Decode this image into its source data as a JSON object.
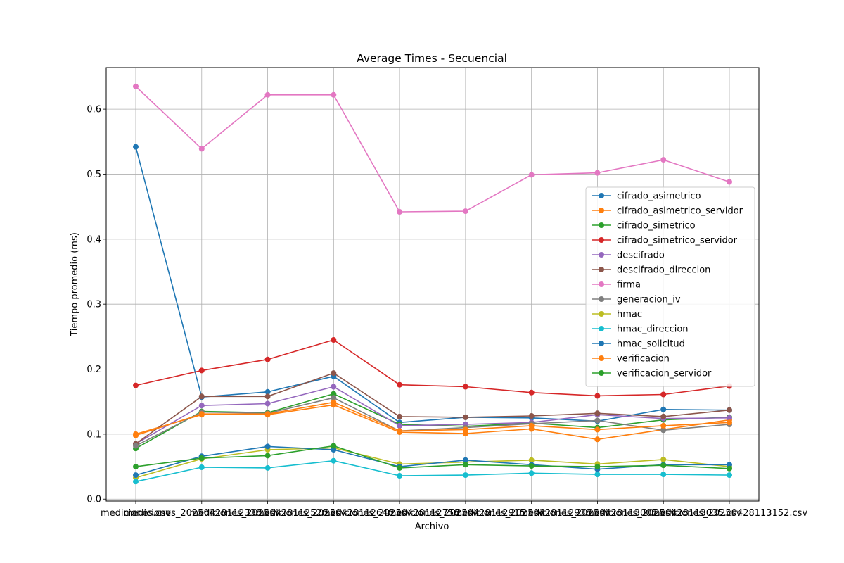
{
  "chart_data": {
    "type": "line",
    "title": "Average Times - Secuencial",
    "xlabel": "Archivo",
    "ylabel": "Tiempo promedio (ms)",
    "categories": [
      "mediciones.csv",
      "mediciones_20250428112338.csv",
      "mediciones_20250428112520.csv",
      "mediciones_20250428112640.csv",
      "mediciones_20250428112758.csv",
      "mediciones_20250428112915.csv",
      "mediciones_20250428112938.csv",
      "mediciones_20250428113007.csv",
      "mediciones_20250428113035.csv",
      "mediciones_20250428113152.csv"
    ],
    "ylim": [
      -0.003,
      0.664
    ],
    "yticks": [
      0.0,
      0.1,
      0.2,
      0.3,
      0.4,
      0.5,
      0.6
    ],
    "ytick_labels": [
      "0.0",
      "0.1",
      "0.2",
      "0.3",
      "0.4",
      "0.5",
      "0.6"
    ],
    "grid": true,
    "legend_position": "center-right",
    "series": [
      {
        "name": "cifrado_asimetrico",
        "color": "#1f77b4",
        "values": [
          0.542,
          0.157,
          0.165,
          0.189,
          0.118,
          0.126,
          0.125,
          0.12,
          0.138,
          0.137
        ]
      },
      {
        "name": "cifrado_asimetrico_servidor",
        "color": "#ff7f0e",
        "values": [
          0.1,
          0.13,
          0.13,
          0.145,
          0.103,
          0.101,
          0.108,
          0.092,
          0.107,
          0.122
        ]
      },
      {
        "name": "cifrado_simetrico",
        "color": "#2ca02c",
        "values": [
          0.078,
          0.135,
          0.133,
          0.162,
          0.115,
          0.112,
          0.117,
          0.11,
          0.122,
          0.126
        ]
      },
      {
        "name": "cifrado_simetrico_servidor",
        "color": "#d62728",
        "values": [
          0.175,
          0.198,
          0.215,
          0.245,
          0.176,
          0.173,
          0.164,
          0.159,
          0.161,
          0.174
        ]
      },
      {
        "name": "descifrado",
        "color": "#9467bd",
        "values": [
          0.085,
          0.144,
          0.147,
          0.173,
          0.113,
          0.115,
          0.118,
          0.13,
          0.124,
          0.125
        ]
      },
      {
        "name": "descifrado_direccion",
        "color": "#8c564b",
        "values": [
          0.085,
          0.158,
          0.158,
          0.194,
          0.127,
          0.126,
          0.128,
          0.132,
          0.127,
          0.137
        ]
      },
      {
        "name": "firma",
        "color": "#e377c2",
        "values": [
          0.635,
          0.539,
          0.622,
          0.622,
          0.442,
          0.443,
          0.499,
          0.502,
          0.522,
          0.488
        ]
      },
      {
        "name": "generacion_iv",
        "color": "#7f7f7f",
        "values": [
          0.082,
          0.134,
          0.132,
          0.156,
          0.105,
          0.11,
          0.116,
          0.121,
          0.106,
          0.115
        ]
      },
      {
        "name": "hmac",
        "color": "#bcbd22",
        "values": [
          0.033,
          0.062,
          0.076,
          0.079,
          0.054,
          0.057,
          0.06,
          0.054,
          0.061,
          0.05
        ]
      },
      {
        "name": "hmac_direccion",
        "color": "#17becf",
        "values": [
          0.027,
          0.049,
          0.048,
          0.059,
          0.036,
          0.037,
          0.04,
          0.038,
          0.038,
          0.037
        ]
      },
      {
        "name": "hmac_solicitud",
        "color": "#1f77b4",
        "values": [
          0.037,
          0.066,
          0.081,
          0.076,
          0.05,
          0.06,
          0.053,
          0.046,
          0.053,
          0.053
        ]
      },
      {
        "name": "verificacion",
        "color": "#ff7f0e",
        "values": [
          0.098,
          0.131,
          0.131,
          0.149,
          0.105,
          0.107,
          0.113,
          0.107,
          0.113,
          0.118
        ]
      },
      {
        "name": "verificacion_servidor",
        "color": "#2ca02c",
        "values": [
          0.05,
          0.063,
          0.067,
          0.082,
          0.048,
          0.053,
          0.051,
          0.05,
          0.052,
          0.047
        ]
      }
    ]
  }
}
